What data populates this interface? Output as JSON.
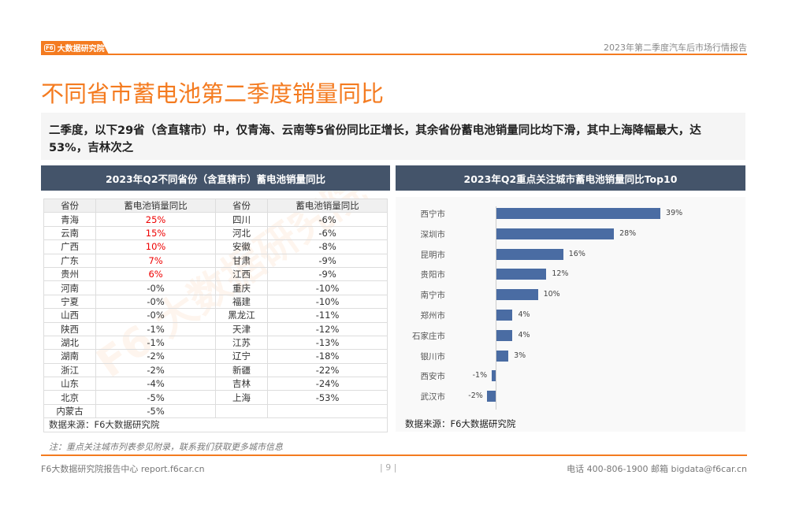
{
  "header": {
    "logo_text": "大数据研究院",
    "logo_badge": "F6",
    "report_title": "2023年第二季度汽车后市场行情报告"
  },
  "page_title": "不同省市蓄电池第二季度销量同比",
  "summary": "二季度，以下29省（含直辖市）中，仅青海、云南等5省份同比正增长，其余省份蓄电池销量同比均下滑，其中上海降幅最大，达53%，吉林次之",
  "left_panel": {
    "title": "2023年Q2不同省份（含直辖市）蓄电池销量同比",
    "headers": [
      "省份",
      "蓄电池销量同比",
      "省份",
      "蓄电池销量同比"
    ],
    "rows": [
      [
        "青海",
        "25%",
        "四川",
        "-6%"
      ],
      [
        "云南",
        "15%",
        "河北",
        "-6%"
      ],
      [
        "广西",
        "10%",
        "安徽",
        "-8%"
      ],
      [
        "广东",
        "7%",
        "甘肃",
        "-9%"
      ],
      [
        "贵州",
        "6%",
        "江西",
        "-9%"
      ],
      [
        "河南",
        "-0%",
        "重庆",
        "-10%"
      ],
      [
        "宁夏",
        "-0%",
        "福建",
        "-10%"
      ],
      [
        "山西",
        "-0%",
        "黑龙江",
        "-11%"
      ],
      [
        "陕西",
        "-1%",
        "天津",
        "-12%"
      ],
      [
        "湖北",
        "-1%",
        "江苏",
        "-13%"
      ],
      [
        "湖南",
        "-2%",
        "辽宁",
        "-18%"
      ],
      [
        "浙江",
        "-2%",
        "新疆",
        "-22%"
      ],
      [
        "山东",
        "-4%",
        "吉林",
        "-24%"
      ],
      [
        "北京",
        "-5%",
        "上海",
        "-53%"
      ],
      [
        "内蒙古",
        "-5%",
        "",
        ""
      ]
    ],
    "source": "数据来源：F6大数据研究院"
  },
  "chart_data": {
    "type": "bar",
    "orientation": "horizontal",
    "title": "2023年Q2重点关注城市蓄电池销量同比Top10",
    "categories": [
      "西宁市",
      "深圳市",
      "昆明市",
      "贵阳市",
      "南宁市",
      "郑州市",
      "石家庄市",
      "银川市",
      "西安市",
      "武汉市"
    ],
    "values": [
      39,
      28,
      16,
      12,
      10,
      4,
      4,
      3,
      -1,
      -2
    ],
    "labels": [
      "39%",
      "28%",
      "16%",
      "12%",
      "10%",
      "4%",
      "4%",
      "3%",
      "-1%",
      "-2%"
    ],
    "bar_color": "#4a6ca3",
    "source": "数据来源：F6大数据研究院"
  },
  "note": "注：重点关注城市列表参见附录，联系我们获取更多城市信息",
  "footer": {
    "left": "F6大数据研究院报告中心 report.f6car.cn",
    "page": "9",
    "right": "电话 400-806-1900  邮箱 bigdata@f6car.cn"
  },
  "colors": {
    "accent": "#f47b20",
    "panel_header": "#44546a",
    "positive": "#e00000"
  }
}
